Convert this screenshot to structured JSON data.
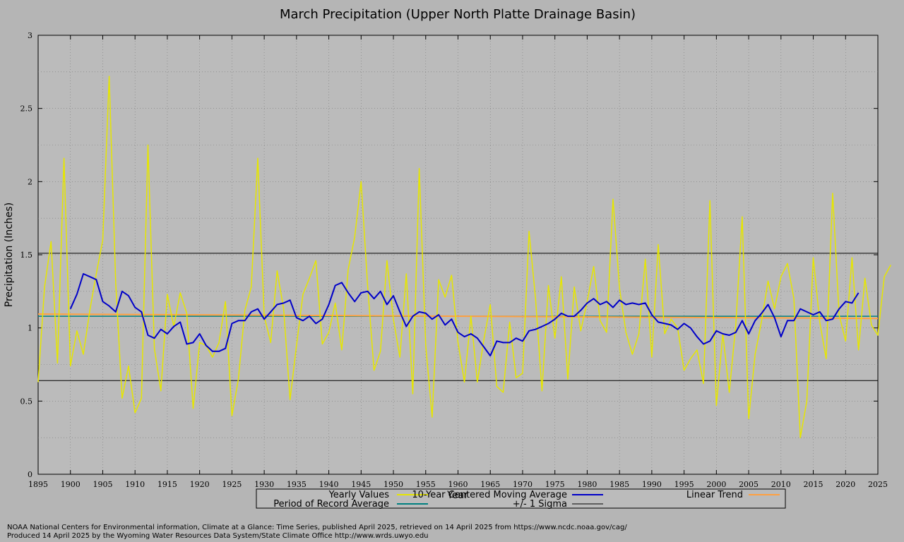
{
  "chart_data": {
    "type": "line",
    "title": "March Precipitation (Upper North Platte Drainage Basin)",
    "xlabel": "Year",
    "ylabel": "Precipitation (Inches)",
    "xlim": [
      1895,
      2025
    ],
    "ylim": [
      0,
      3
    ],
    "x_ticks": [
      1895,
      1900,
      1905,
      1910,
      1915,
      1920,
      1925,
      1930,
      1935,
      1940,
      1945,
      1950,
      1955,
      1960,
      1965,
      1970,
      1975,
      1980,
      1985,
      1990,
      1995,
      2000,
      2005,
      2010,
      2015,
      2020,
      2025
    ],
    "y_ticks": [
      0,
      0.5,
      1,
      1.5,
      2,
      2.5,
      3
    ],
    "y_tick_labels": [
      "0",
      "0.5",
      "1",
      "1.5",
      "2",
      "2.5",
      "3"
    ],
    "grid": true,
    "legend_placement": "bottom",
    "series": [
      {
        "name": "Yearly Values",
        "color": "#e6e600",
        "x_start": 1895,
        "values": [
          0.63,
          1.28,
          1.59,
          0.76,
          2.16,
          0.74,
          0.98,
          0.82,
          1.12,
          1.37,
          1.6,
          2.72,
          1.31,
          0.52,
          0.74,
          0.42,
          0.52,
          2.25,
          0.86,
          0.57,
          1.23,
          1.01,
          1.24,
          1.1,
          0.45,
          0.9,
          0.88,
          0.8,
          0.9,
          1.18,
          0.4,
          0.65,
          1.12,
          1.28,
          2.16,
          1.08,
          0.9,
          1.39,
          1.13,
          0.51,
          0.88,
          1.23,
          1.34,
          1.46,
          0.89,
          0.97,
          1.17,
          0.85,
          1.4,
          1.62,
          2.0,
          1.29,
          0.71,
          0.84,
          1.46,
          1.06,
          0.8,
          1.37,
          0.55,
          2.09,
          0.88,
          0.39,
          1.33,
          1.21,
          1.36,
          0.9,
          0.63,
          1.08,
          0.63,
          0.92,
          1.16,
          0.6,
          0.56,
          1.04,
          0.66,
          0.69,
          1.66,
          1.2,
          0.57,
          1.29,
          0.93,
          1.35,
          0.65,
          1.28,
          0.98,
          1.18,
          1.42,
          1.05,
          0.97,
          1.88,
          1.27,
          0.97,
          0.82,
          0.96,
          1.47,
          0.8,
          1.57,
          0.96,
          1.06,
          1.0,
          0.71,
          0.79,
          0.85,
          0.62,
          1.87,
          0.47,
          0.96,
          0.56,
          1.02,
          1.76,
          0.38,
          0.82,
          1.05,
          1.32,
          1.13,
          1.35,
          1.44,
          1.2,
          0.25,
          0.5,
          1.48,
          1.04,
          0.79,
          1.92,
          1.09,
          0.91,
          1.48,
          0.85,
          1.34,
          1.02,
          0.95,
          1.35,
          1.43
        ]
      },
      {
        "name": "10-Year Centered Moving Average",
        "color": "#0000c8",
        "x_start": 1900,
        "values": [
          1.13,
          1.23,
          1.37,
          1.35,
          1.33,
          1.18,
          1.15,
          1.11,
          1.25,
          1.22,
          1.14,
          1.11,
          0.95,
          0.93,
          0.99,
          0.96,
          1.01,
          1.04,
          0.89,
          0.9,
          0.96,
          0.88,
          0.84,
          0.84,
          0.86,
          1.03,
          1.05,
          1.05,
          1.11,
          1.13,
          1.06,
          1.11,
          1.16,
          1.17,
          1.19,
          1.07,
          1.05,
          1.08,
          1.03,
          1.06,
          1.16,
          1.29,
          1.31,
          1.24,
          1.18,
          1.24,
          1.25,
          1.2,
          1.25,
          1.16,
          1.22,
          1.11,
          1.01,
          1.08,
          1.11,
          1.1,
          1.06,
          1.09,
          1.02,
          1.06,
          0.97,
          0.94,
          0.96,
          0.93,
          0.87,
          0.81,
          0.91,
          0.9,
          0.9,
          0.93,
          0.91,
          0.98,
          0.99,
          1.01,
          1.03,
          1.06,
          1.1,
          1.08,
          1.08,
          1.12,
          1.17,
          1.2,
          1.16,
          1.18,
          1.14,
          1.19,
          1.16,
          1.17,
          1.16,
          1.17,
          1.09,
          1.04,
          1.03,
          1.02,
          0.99,
          1.03,
          1.0,
          0.94,
          0.89,
          0.91,
          0.98,
          0.96,
          0.95,
          0.97,
          1.05,
          0.96,
          1.05,
          1.1,
          1.16,
          1.07,
          0.94,
          1.05,
          1.05,
          1.13,
          1.11,
          1.09,
          1.11,
          1.05,
          1.06,
          1.13,
          1.18,
          1.17,
          1.24
        ]
      }
    ],
    "linear_trend": {
      "name": "Linear Trend",
      "color": "#ffa040",
      "y_start": 1.095,
      "y_end": 1.065
    },
    "period_average": {
      "name": "Period of Record Average",
      "color": "#008080",
      "value": 1.08
    },
    "sigma": {
      "name": "+/- 1 Sigma",
      "color": "#000000",
      "upper": 1.51,
      "lower": 0.64
    }
  },
  "legend": {
    "yearly": "Yearly Values",
    "moving_avg": "10-Year Centered Moving Average",
    "trend": "Linear Trend",
    "period_avg": "Period of Record Average",
    "sigma": "+/- 1 Sigma"
  },
  "footer": {
    "line1": "NOAA National Centers for Environmental information, Climate at a Glance: Time Series, published April 2025, retrieved on 14 April 2025 from https://www.ncdc.noaa.gov/cag/",
    "line2": "Produced 14 April 2025 by the Wyoming Water Resources Data System/State Climate Office http://www.wrds.uwyo.edu"
  }
}
